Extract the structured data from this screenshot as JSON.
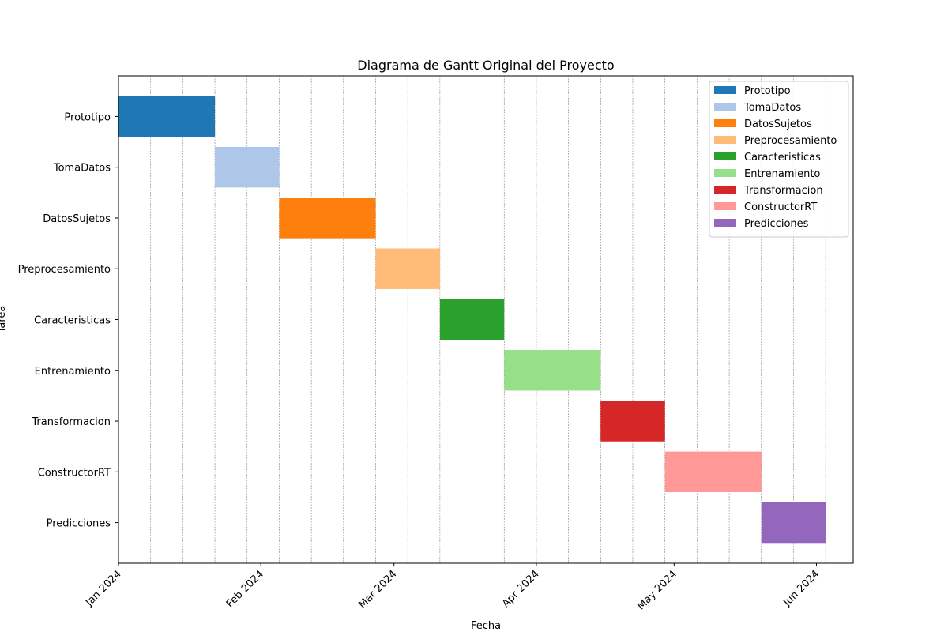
{
  "chart_data": {
    "type": "gantt",
    "title": "Diagrama de Gantt Original del Proyecto",
    "xlabel": "Fecha",
    "ylabel": "Tarea",
    "xlim": [
      "2024-01-01",
      "2024-06-09"
    ],
    "x_ticks": [
      {
        "date": "2024-01-01",
        "label": "Jan 2024"
      },
      {
        "date": "2024-02-01",
        "label": "Feb 2024"
      },
      {
        "date": "2024-03-01",
        "label": "Mar 2024"
      },
      {
        "date": "2024-04-01",
        "label": "Apr 2024"
      },
      {
        "date": "2024-05-01",
        "label": "May 2024"
      },
      {
        "date": "2024-06-01",
        "label": "Jun 2024"
      }
    ],
    "grid": "x-weekly-dashed",
    "legend_position": "top-right",
    "tasks": [
      {
        "name": "Prototipo",
        "start": "2024-01-01",
        "end": "2024-01-22",
        "color": "#1f77b4"
      },
      {
        "name": "TomaDatos",
        "start": "2024-01-22",
        "end": "2024-02-05",
        "color": "#aec7e8"
      },
      {
        "name": "DatosSujetos",
        "start": "2024-02-05",
        "end": "2024-02-26",
        "color": "#ff7f0e"
      },
      {
        "name": "Preprocesamiento",
        "start": "2024-02-26",
        "end": "2024-03-11",
        "color": "#ffbb78"
      },
      {
        "name": "Caracteristicas",
        "start": "2024-03-11",
        "end": "2024-03-25",
        "color": "#2ca02c"
      },
      {
        "name": "Entrenamiento",
        "start": "2024-03-25",
        "end": "2024-04-15",
        "color": "#98df8a"
      },
      {
        "name": "Transformacion",
        "start": "2024-04-15",
        "end": "2024-04-29",
        "color": "#d62728"
      },
      {
        "name": "ConstructorRT",
        "start": "2024-04-29",
        "end": "2024-05-20",
        "color": "#ff9896"
      },
      {
        "name": "Predicciones",
        "start": "2024-05-20",
        "end": "2024-06-03",
        "color": "#9467bd"
      }
    ]
  }
}
